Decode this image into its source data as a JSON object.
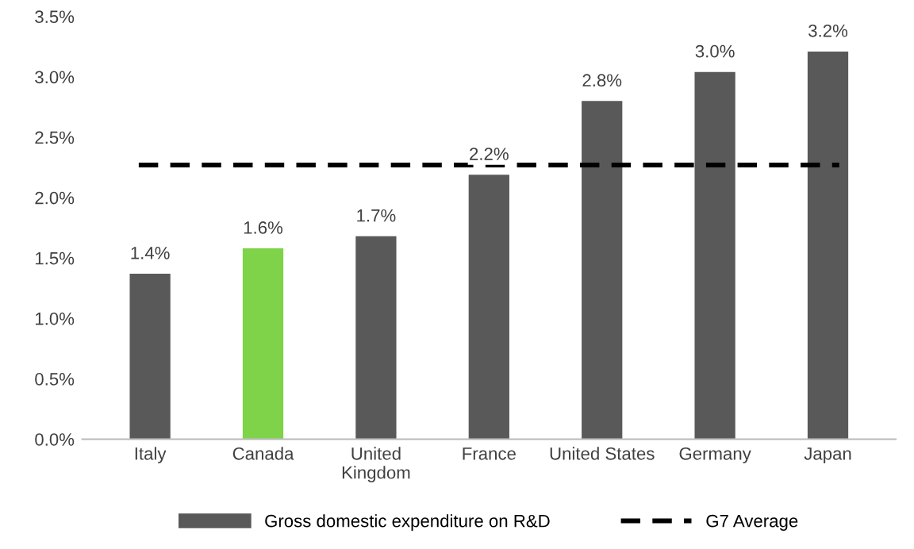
{
  "chart_data": {
    "type": "bar",
    "categories": [
      "Italy",
      "Canada",
      "United\nKingdom",
      "France",
      "United States",
      "Germany",
      "Japan"
    ],
    "series": [
      {
        "name": "Gross domestic expenditure on R&D",
        "color": "#595959",
        "colors": [
          "#595959",
          "#7ed348",
          "#595959",
          "#595959",
          "#595959",
          "#595959",
          "#595959"
        ],
        "values": [
          1.37,
          1.58,
          1.68,
          2.19,
          2.8,
          3.04,
          3.21
        ],
        "value_labels": [
          "1.4%",
          "1.6%",
          "1.7%",
          "2.2%",
          "2.8%",
          "3.0%",
          "3.2%"
        ]
      }
    ],
    "ylim": [
      0,
      3.5
    ],
    "yticks": [
      {
        "value": 0,
        "label": "0.0%"
      },
      {
        "value": 0.5,
        "label": "0.5%"
      },
      {
        "value": 1,
        "label": "1.0%"
      },
      {
        "value": 1.5,
        "label": "1.5%"
      },
      {
        "value": 2,
        "label": "2.0%"
      },
      {
        "value": 2.5,
        "label": "2.5%"
      },
      {
        "value": 3,
        "label": "3.0%"
      },
      {
        "value": 3.5,
        "label": "3.5%"
      }
    ],
    "ref_lines": [
      {
        "axis": "y",
        "value": 2.27,
        "label": "G7 Average",
        "color": "#000000",
        "line_style": "dashed"
      }
    ],
    "grid": false,
    "legend": "bottom"
  }
}
